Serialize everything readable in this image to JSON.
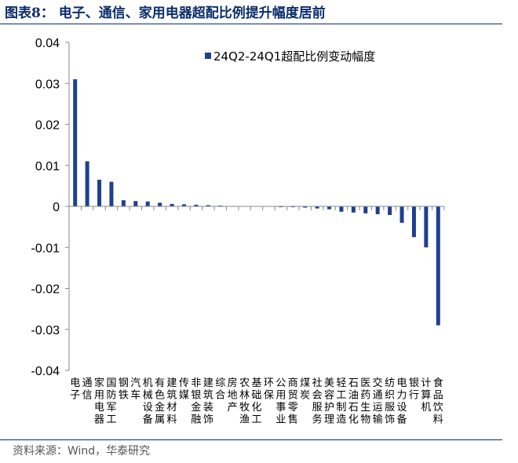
{
  "title": "图表8：  电子、通信、家用电器超配比例提升幅度居前",
  "source": "资料来源：Wind，华泰研究",
  "colors": {
    "bar": "#1f3f8f",
    "title": "#0b2d6b"
  },
  "chart_data": {
    "type": "bar",
    "legend_position": "top-right",
    "grid": false,
    "ylim": [
      -0.04,
      0.04
    ],
    "yticks": [
      "0.04",
      "0.03",
      "0.02",
      "0.01",
      "0",
      "-0.01",
      "-0.02",
      "-0.03",
      "-0.04"
    ],
    "categories": [
      "电子",
      "通信",
      "家用电器",
      "国防军工",
      "钢铁",
      "汽车",
      "机械设备",
      "有色金属",
      "建筑材料",
      "传媒",
      "非银金融",
      "建筑装饰",
      "综合",
      "房地产",
      "农林牧渔",
      "基础化工",
      "环保",
      "公用事业",
      "商贸零售",
      "煤炭",
      "社会服务",
      "美容护理",
      "轻工制造",
      "石油石化",
      "医药生物",
      "交通运输",
      "纺织服饰",
      "电力设备",
      "银行",
      "计算机",
      "食品饮料"
    ],
    "series": [
      {
        "name": "24Q2-24Q1超配比例变动幅度",
        "values": [
          0.031,
          0.011,
          0.0065,
          0.006,
          0.0015,
          0.0013,
          0.0012,
          0.0009,
          0.0006,
          0.0005,
          0.0004,
          0.0003,
          0.0002,
          0.0001,
          0.0,
          0.0,
          0.0,
          -0.0001,
          -0.0002,
          -0.0003,
          -0.0005,
          -0.0007,
          -0.0013,
          -0.0015,
          -0.0017,
          -0.0019,
          -0.0021,
          -0.004,
          -0.0075,
          -0.01,
          -0.029
        ]
      }
    ]
  }
}
